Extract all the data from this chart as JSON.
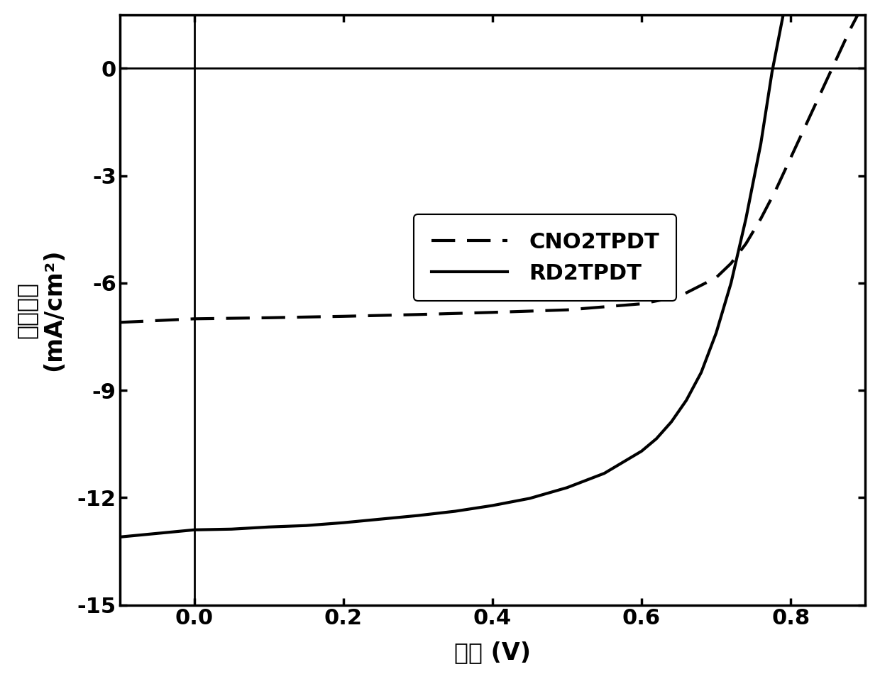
{
  "xlabel": "电压 (V)",
  "ylabel_line1": "电流密度",
  "ylabel_line2": "(mA/cm²)",
  "xlim": [
    -0.1,
    0.9
  ],
  "ylim": [
    -15,
    1.5
  ],
  "xticks": [
    0.0,
    0.2,
    0.4,
    0.6,
    0.8
  ],
  "yticks": [
    0,
    -3,
    -6,
    -9,
    -12,
    -15
  ],
  "legend_labels": [
    "CNO2TPDT",
    "RD2TPDT"
  ],
  "line_color": "#000000",
  "background_color": "#ffffff",
  "CNO2TPDT": {
    "x": [
      -0.1,
      0.0,
      0.1,
      0.2,
      0.3,
      0.4,
      0.5,
      0.6,
      0.65,
      0.7,
      0.72,
      0.74,
      0.76,
      0.78,
      0.8,
      0.82,
      0.84,
      0.86,
      0.88,
      0.9
    ],
    "y": [
      -7.1,
      -7.0,
      -6.97,
      -6.93,
      -6.88,
      -6.82,
      -6.75,
      -6.58,
      -6.38,
      -5.85,
      -5.45,
      -4.9,
      -4.2,
      -3.4,
      -2.5,
      -1.6,
      -0.7,
      0.2,
      1.1,
      1.9
    ]
  },
  "RD2TPDT": {
    "x": [
      -0.1,
      0.0,
      0.05,
      0.1,
      0.15,
      0.2,
      0.25,
      0.3,
      0.35,
      0.4,
      0.45,
      0.5,
      0.55,
      0.6,
      0.62,
      0.64,
      0.66,
      0.68,
      0.7,
      0.72,
      0.74,
      0.76,
      0.775,
      0.79
    ],
    "y": [
      -13.1,
      -12.9,
      -12.88,
      -12.82,
      -12.78,
      -12.7,
      -12.6,
      -12.5,
      -12.38,
      -12.22,
      -12.02,
      -11.72,
      -11.32,
      -10.7,
      -10.35,
      -9.88,
      -9.28,
      -8.5,
      -7.4,
      -6.0,
      -4.2,
      -2.1,
      -0.1,
      1.5
    ]
  }
}
